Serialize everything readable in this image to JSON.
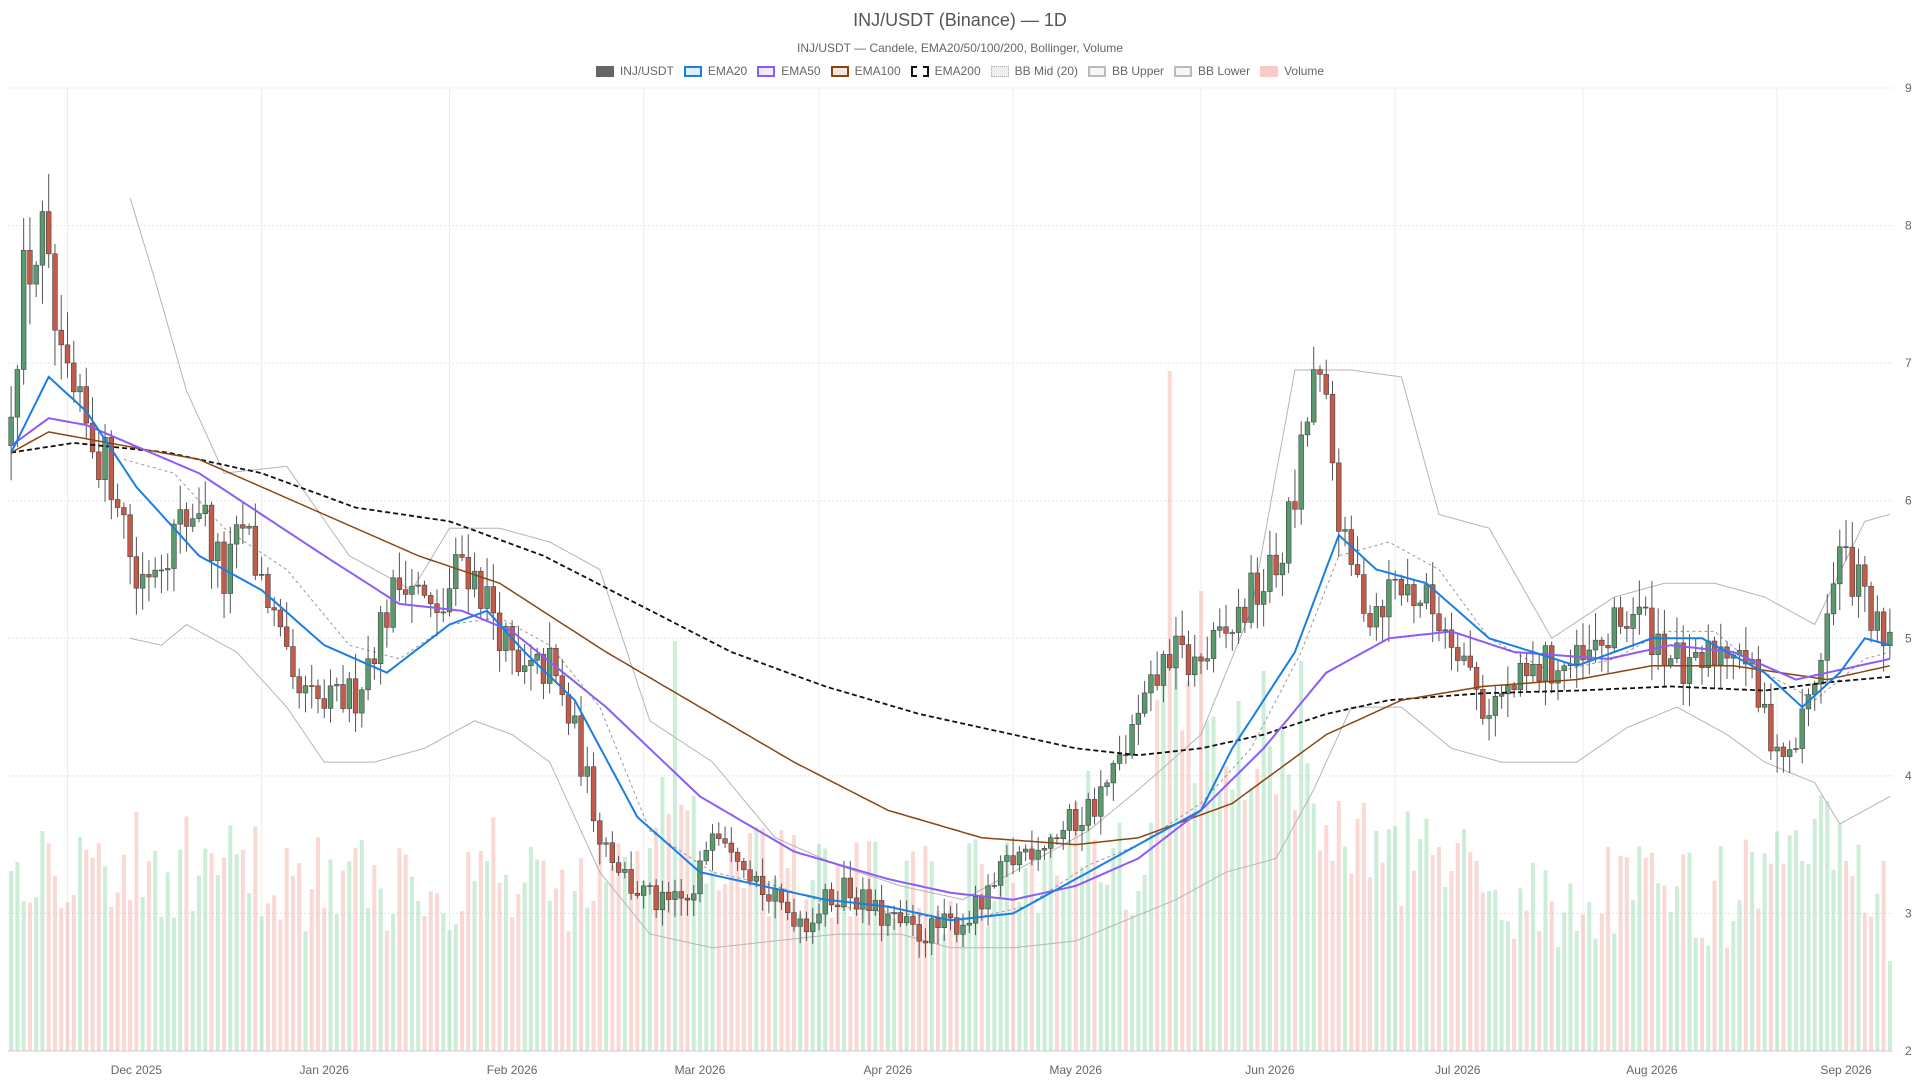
{
  "chart_data": {
    "type": "candlestick",
    "title": "INJ/USDT (Binance) — 1D",
    "subtitle": "INJ/USDT — Candele, EMA20/50/100/200, Bollinger, Volume",
    "legend": [
      {
        "label": "INJ/USDT",
        "color": "#666666",
        "style": "solid"
      },
      {
        "label": "EMA20",
        "color": "#1a7fe0",
        "style": "outline"
      },
      {
        "label": "EMA50",
        "color": "#8b5cf6",
        "style": "outline"
      },
      {
        "label": "EMA100",
        "color": "#8b4513",
        "style": "outline"
      },
      {
        "label": "EMA200",
        "color": "#111111",
        "style": "dashed"
      },
      {
        "label": "BB Mid (20)",
        "color": "#aaaaaa",
        "style": "dotted"
      },
      {
        "label": "BB Upper",
        "color": "#bbbbbb",
        "style": "outline"
      },
      {
        "label": "BB Lower",
        "color": "#bbbbbb",
        "style": "outline"
      },
      {
        "label": "Volume",
        "color": "#f4a9a0",
        "style": "fill"
      }
    ],
    "x_ticks": [
      "Dec 2025",
      "Jan 2026",
      "Feb 2026",
      "Mar 2026",
      "Apr 2026",
      "May 2026",
      "Jun 2026",
      "Jul 2026",
      "Aug 2026",
      "Sep 2026"
    ],
    "y_ticks": [
      2,
      3,
      4,
      5,
      6,
      7,
      8,
      9
    ],
    "ylim": [
      2,
      9
    ],
    "grid": true,
    "legend_position": "top-center",
    "up_color": "#5a9a6e",
    "down_color": "#c45a4a",
    "series": {
      "price_path": [
        [
          0,
          6.4
        ],
        [
          3,
          7.6
        ],
        [
          6,
          7.9
        ],
        [
          9,
          6.9
        ],
        [
          12,
          6.6
        ],
        [
          18,
          6.1
        ],
        [
          21,
          5.4
        ],
        [
          26,
          5.7
        ],
        [
          31,
          6.0
        ],
        [
          35,
          5.4
        ],
        [
          38,
          5.8
        ],
        [
          42,
          5.3
        ],
        [
          46,
          4.6
        ],
        [
          51,
          4.5
        ],
        [
          56,
          4.6
        ],
        [
          60,
          5.1
        ],
        [
          64,
          5.5
        ],
        [
          69,
          5.1
        ],
        [
          73,
          5.6
        ],
        [
          78,
          5.2
        ],
        [
          82,
          4.7
        ],
        [
          87,
          4.8
        ],
        [
          91,
          4.3
        ],
        [
          95,
          3.6
        ],
        [
          100,
          3.2
        ],
        [
          105,
          3.05
        ],
        [
          110,
          3.1
        ],
        [
          113,
          3.7
        ],
        [
          117,
          3.5
        ],
        [
          122,
          3.1
        ],
        [
          128,
          2.95
        ],
        [
          134,
          3.2
        ],
        [
          139,
          3.0
        ],
        [
          146,
          2.85
        ],
        [
          153,
          2.95
        ],
        [
          157,
          3.1
        ],
        [
          160,
          3.35
        ],
        [
          164,
          3.5
        ],
        [
          169,
          3.6
        ],
        [
          174,
          3.8
        ],
        [
          177,
          4.0
        ],
        [
          182,
          4.5
        ],
        [
          186,
          4.9
        ],
        [
          190,
          4.8
        ],
        [
          195,
          5.0
        ],
        [
          199,
          5.3
        ],
        [
          203,
          5.5
        ],
        [
          206,
          6.0
        ],
        [
          209,
          6.9
        ],
        [
          211,
          6.6
        ],
        [
          214,
          5.6
        ],
        [
          218,
          5.2
        ],
        [
          222,
          5.4
        ],
        [
          226,
          5.3
        ],
        [
          232,
          5.0
        ],
        [
          236,
          4.5
        ],
        [
          240,
          4.6
        ],
        [
          246,
          4.8
        ],
        [
          252,
          4.8
        ],
        [
          256,
          5.0
        ],
        [
          260,
          5.2
        ],
        [
          264,
          5.0
        ],
        [
          269,
          4.7
        ],
        [
          273,
          4.9
        ],
        [
          277,
          5.0
        ],
        [
          281,
          4.4
        ],
        [
          285,
          4.1
        ],
        [
          289,
          4.7
        ],
        [
          293,
          5.6
        ],
        [
          296,
          5.4
        ],
        [
          300,
          4.9
        ]
      ],
      "ema20": [
        [
          0,
          6.35
        ],
        [
          6,
          6.9
        ],
        [
          12,
          6.65
        ],
        [
          20,
          6.1
        ],
        [
          30,
          5.6
        ],
        [
          40,
          5.35
        ],
        [
          50,
          4.95
        ],
        [
          60,
          4.75
        ],
        [
          70,
          5.1
        ],
        [
          76,
          5.2
        ],
        [
          82,
          4.9
        ],
        [
          90,
          4.55
        ],
        [
          100,
          3.7
        ],
        [
          110,
          3.3
        ],
        [
          120,
          3.2
        ],
        [
          130,
          3.1
        ],
        [
          140,
          3.05
        ],
        [
          150,
          2.95
        ],
        [
          160,
          3.0
        ],
        [
          170,
          3.25
        ],
        [
          180,
          3.5
        ],
        [
          190,
          3.75
        ],
        [
          195,
          4.2
        ],
        [
          205,
          4.9
        ],
        [
          212,
          5.75
        ],
        [
          218,
          5.5
        ],
        [
          226,
          5.4
        ],
        [
          236,
          5.0
        ],
        [
          250,
          4.8
        ],
        [
          262,
          5.0
        ],
        [
          270,
          5.0
        ],
        [
          280,
          4.75
        ],
        [
          286,
          4.5
        ],
        [
          292,
          4.75
        ],
        [
          296,
          5.0
        ],
        [
          300,
          4.95
        ]
      ],
      "ema50": [
        [
          0,
          6.4
        ],
        [
          6,
          6.6
        ],
        [
          12,
          6.55
        ],
        [
          30,
          6.2
        ],
        [
          50,
          5.6
        ],
        [
          62,
          5.25
        ],
        [
          72,
          5.2
        ],
        [
          80,
          5.05
        ],
        [
          95,
          4.5
        ],
        [
          110,
          3.85
        ],
        [
          125,
          3.45
        ],
        [
          140,
          3.25
        ],
        [
          150,
          3.15
        ],
        [
          160,
          3.1
        ],
        [
          170,
          3.2
        ],
        [
          180,
          3.4
        ],
        [
          190,
          3.75
        ],
        [
          200,
          4.2
        ],
        [
          210,
          4.75
        ],
        [
          220,
          5.0
        ],
        [
          230,
          5.05
        ],
        [
          240,
          4.9
        ],
        [
          255,
          4.85
        ],
        [
          265,
          4.95
        ],
        [
          275,
          4.9
        ],
        [
          285,
          4.7
        ],
        [
          295,
          4.8
        ],
        [
          300,
          4.85
        ]
      ],
      "ema100": [
        [
          0,
          6.35
        ],
        [
          6,
          6.5
        ],
        [
          12,
          6.45
        ],
        [
          30,
          6.3
        ],
        [
          50,
          5.9
        ],
        [
          65,
          5.6
        ],
        [
          78,
          5.4
        ],
        [
          95,
          4.9
        ],
        [
          110,
          4.5
        ],
        [
          125,
          4.1
        ],
        [
          140,
          3.75
        ],
        [
          155,
          3.55
        ],
        [
          170,
          3.5
        ],
        [
          180,
          3.55
        ],
        [
          195,
          3.8
        ],
        [
          210,
          4.3
        ],
        [
          222,
          4.55
        ],
        [
          235,
          4.65
        ],
        [
          250,
          4.7
        ],
        [
          262,
          4.8
        ],
        [
          275,
          4.8
        ],
        [
          290,
          4.7
        ],
        [
          300,
          4.8
        ]
      ],
      "ema200": [
        [
          0,
          6.35
        ],
        [
          10,
          6.42
        ],
        [
          25,
          6.35
        ],
        [
          40,
          6.2
        ],
        [
          55,
          5.95
        ],
        [
          70,
          5.85
        ],
        [
          85,
          5.6
        ],
        [
          100,
          5.25
        ],
        [
          115,
          4.9
        ],
        [
          130,
          4.65
        ],
        [
          145,
          4.45
        ],
        [
          160,
          4.3
        ],
        [
          170,
          4.2
        ],
        [
          180,
          4.15
        ],
        [
          190,
          4.2
        ],
        [
          200,
          4.3
        ],
        [
          210,
          4.45
        ],
        [
          220,
          4.55
        ],
        [
          235,
          4.6
        ],
        [
          250,
          4.62
        ],
        [
          265,
          4.65
        ],
        [
          280,
          4.62
        ],
        [
          290,
          4.68
        ],
        [
          300,
          4.72
        ]
      ],
      "bb_mid": [
        [
          18,
          6.3
        ],
        [
          26,
          6.2
        ],
        [
          34,
          5.8
        ],
        [
          44,
          5.5
        ],
        [
          54,
          4.95
        ],
        [
          62,
          4.85
        ],
        [
          70,
          5.1
        ],
        [
          78,
          5.15
        ],
        [
          86,
          4.95
        ],
        [
          94,
          4.5
        ],
        [
          102,
          3.6
        ],
        [
          112,
          3.3
        ],
        [
          122,
          3.2
        ],
        [
          132,
          3.05
        ],
        [
          142,
          3.0
        ],
        [
          152,
          2.95
        ],
        [
          162,
          3.05
        ],
        [
          172,
          3.35
        ],
        [
          180,
          3.5
        ],
        [
          190,
          3.8
        ],
        [
          198,
          4.2
        ],
        [
          206,
          4.9
        ],
        [
          212,
          5.6
        ],
        [
          220,
          5.7
        ],
        [
          228,
          5.5
        ],
        [
          236,
          5.0
        ],
        [
          246,
          4.75
        ],
        [
          256,
          4.85
        ],
        [
          264,
          5.05
        ],
        [
          272,
          5.05
        ],
        [
          280,
          4.75
        ],
        [
          288,
          4.55
        ],
        [
          296,
          4.85
        ],
        [
          300,
          4.9
        ]
      ],
      "bb_upper": [
        [
          19,
          8.2
        ],
        [
          23,
          7.6
        ],
        [
          28,
          6.8
        ],
        [
          34,
          6.2
        ],
        [
          44,
          6.25
        ],
        [
          54,
          5.6
        ],
        [
          64,
          5.35
        ],
        [
          70,
          5.8
        ],
        [
          78,
          5.8
        ],
        [
          86,
          5.7
        ],
        [
          94,
          5.5
        ],
        [
          102,
          4.4
        ],
        [
          112,
          4.1
        ],
        [
          122,
          3.55
        ],
        [
          132,
          3.35
        ],
        [
          142,
          3.2
        ],
        [
          152,
          3.1
        ],
        [
          162,
          3.35
        ],
        [
          172,
          3.6
        ],
        [
          180,
          3.9
        ],
        [
          190,
          4.3
        ],
        [
          198,
          5.2
        ],
        [
          205,
          6.95
        ],
        [
          214,
          6.95
        ],
        [
          222,
          6.9
        ],
        [
          228,
          5.9
        ],
        [
          236,
          5.8
        ],
        [
          246,
          5.0
        ],
        [
          256,
          5.3
        ],
        [
          264,
          5.4
        ],
        [
          272,
          5.4
        ],
        [
          280,
          5.3
        ],
        [
          288,
          5.1
        ],
        [
          296,
          5.85
        ],
        [
          300,
          5.9
        ]
      ],
      "bb_lower": [
        [
          19,
          5.0
        ],
        [
          24,
          4.95
        ],
        [
          28,
          5.1
        ],
        [
          36,
          4.9
        ],
        [
          44,
          4.5
        ],
        [
          50,
          4.1
        ],
        [
          58,
          4.1
        ],
        [
          66,
          4.2
        ],
        [
          74,
          4.4
        ],
        [
          80,
          4.3
        ],
        [
          86,
          4.1
        ],
        [
          94,
          3.3
        ],
        [
          102,
          2.85
        ],
        [
          112,
          2.75
        ],
        [
          122,
          2.8
        ],
        [
          132,
          2.85
        ],
        [
          142,
          2.85
        ],
        [
          150,
          2.75
        ],
        [
          160,
          2.75
        ],
        [
          170,
          2.8
        ],
        [
          178,
          2.95
        ],
        [
          186,
          3.1
        ],
        [
          194,
          3.3
        ],
        [
          202,
          3.4
        ],
        [
          208,
          3.9
        ],
        [
          214,
          4.5
        ],
        [
          222,
          4.5
        ],
        [
          230,
          4.2
        ],
        [
          238,
          4.1
        ],
        [
          250,
          4.1
        ],
        [
          258,
          4.35
        ],
        [
          266,
          4.5
        ],
        [
          274,
          4.3
        ],
        [
          280,
          4.1
        ],
        [
          288,
          3.95
        ],
        [
          292,
          3.65
        ],
        [
          296,
          3.75
        ],
        [
          300,
          3.85
        ]
      ],
      "volume_spikes": [
        [
          0,
          1.8
        ],
        [
          5,
          2.2
        ],
        [
          65,
          1.5
        ],
        [
          76,
          1.9
        ],
        [
          90,
          1.6
        ],
        [
          100,
          2.0
        ],
        [
          106,
          4.1
        ],
        [
          112,
          1.8
        ],
        [
          148,
          1.4
        ],
        [
          157,
          1.5
        ],
        [
          165,
          1.9
        ],
        [
          172,
          2.8
        ],
        [
          180,
          1.6
        ],
        [
          185,
          6.8
        ],
        [
          190,
          4.6
        ],
        [
          196,
          3.5
        ],
        [
          200,
          3.8
        ],
        [
          206,
          3.9
        ],
        [
          212,
          2.5
        ],
        [
          218,
          2.2
        ],
        [
          230,
          1.8
        ],
        [
          236,
          1.6
        ],
        [
          250,
          1.2
        ],
        [
          275,
          1.3
        ],
        [
          286,
          1.9
        ],
        [
          290,
          2.5
        ],
        [
          293,
          1.9
        ],
        [
          300,
          0.9
        ]
      ]
    }
  }
}
